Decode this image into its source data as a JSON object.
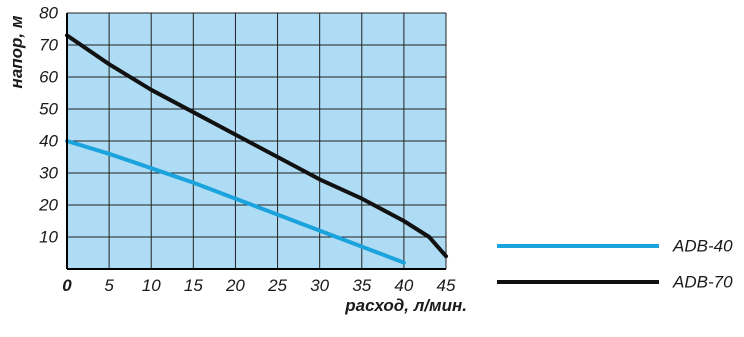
{
  "chart_data": {
    "type": "line",
    "xlabel": "расход, л/мин.",
    "ylabel": "напор, м",
    "xlim": [
      0,
      45
    ],
    "ylim": [
      0,
      80
    ],
    "x_ticks": [
      "0",
      "5",
      "10",
      "15",
      "20",
      "25",
      "30",
      "35",
      "40",
      "45"
    ],
    "y_ticks": [
      "10",
      "20",
      "30",
      "40",
      "50",
      "60",
      "70",
      "80"
    ],
    "grid": true,
    "plot_background": "#aedcf4",
    "legend_position": "right",
    "series": [
      {
        "name": "ADB-40",
        "color": "#1aa3dd",
        "x": [
          0,
          5,
          10,
          15,
          20,
          25,
          30,
          35,
          40
        ],
        "y": [
          40,
          36,
          31.5,
          27,
          22,
          17,
          12,
          7,
          2
        ]
      },
      {
        "name": "ADB-70",
        "color": "#111111",
        "x": [
          0,
          5,
          10,
          15,
          20,
          25,
          30,
          35,
          40,
          43,
          45
        ],
        "y": [
          73,
          64,
          56,
          49,
          42,
          35,
          28,
          22,
          15,
          10,
          4
        ]
      }
    ]
  }
}
